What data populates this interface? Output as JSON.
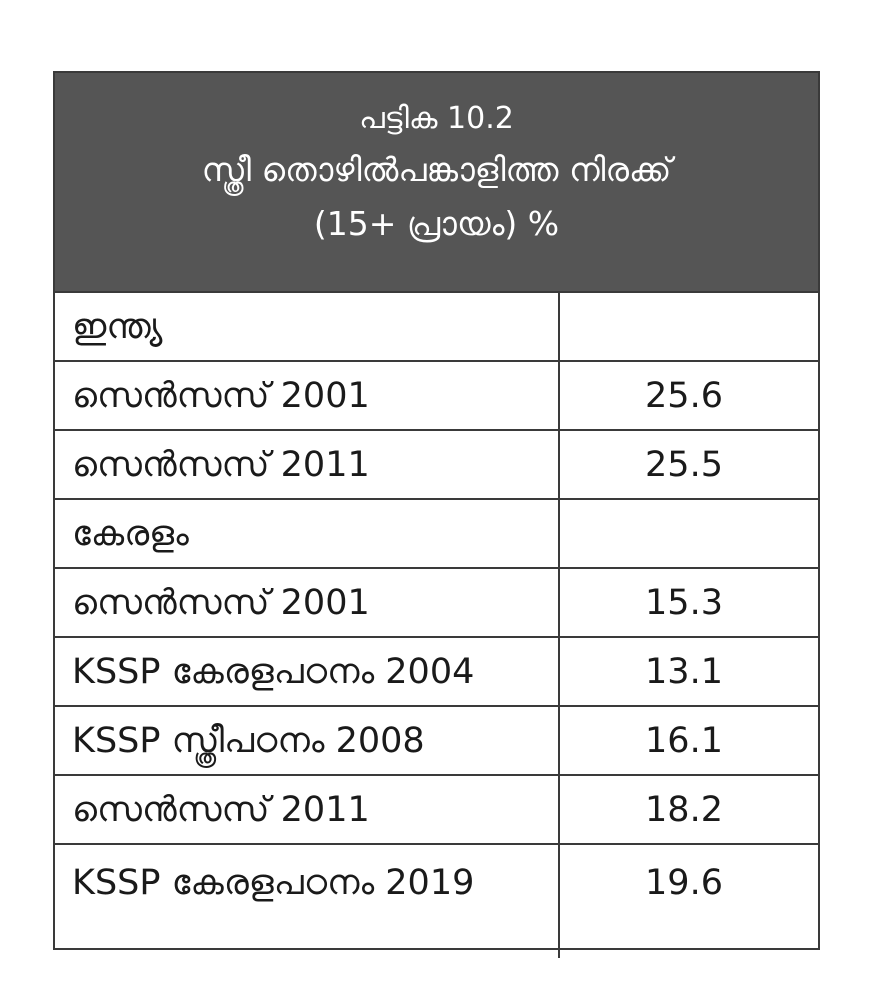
{
  "table": {
    "caption": "പട്ടിക 10.2",
    "title": "സ്ത്രീ തൊഴിൽപങ്കാളിത്ത നിരക്ക്",
    "subtitle": "(15+ പ്രായം) %",
    "rows": [
      {
        "label": "ഇന്ത്യ",
        "value": ""
      },
      {
        "label": "സെൻസസ് 2001",
        "value": "25.6"
      },
      {
        "label": "സെൻസസ് 2011",
        "value": "25.5"
      },
      {
        "label": "കേരളം",
        "value": ""
      },
      {
        "label": "സെൻസസ് 2001",
        "value": "15.3"
      },
      {
        "label": "KSSP കേരളപഠനം 2004",
        "value": "13.1"
      },
      {
        "label": "KSSP സ്ത്രീപഠനം 2008",
        "value": "16.1"
      },
      {
        "label": "സെൻസസ് 2011",
        "value": "18.2"
      },
      {
        "label": "KSSP കേരളപഠനം 2019",
        "value": "19.6"
      }
    ]
  },
  "colors": {
    "header_bg": "#555555",
    "header_text": "#ffffff",
    "border": "#3a3a3a"
  }
}
